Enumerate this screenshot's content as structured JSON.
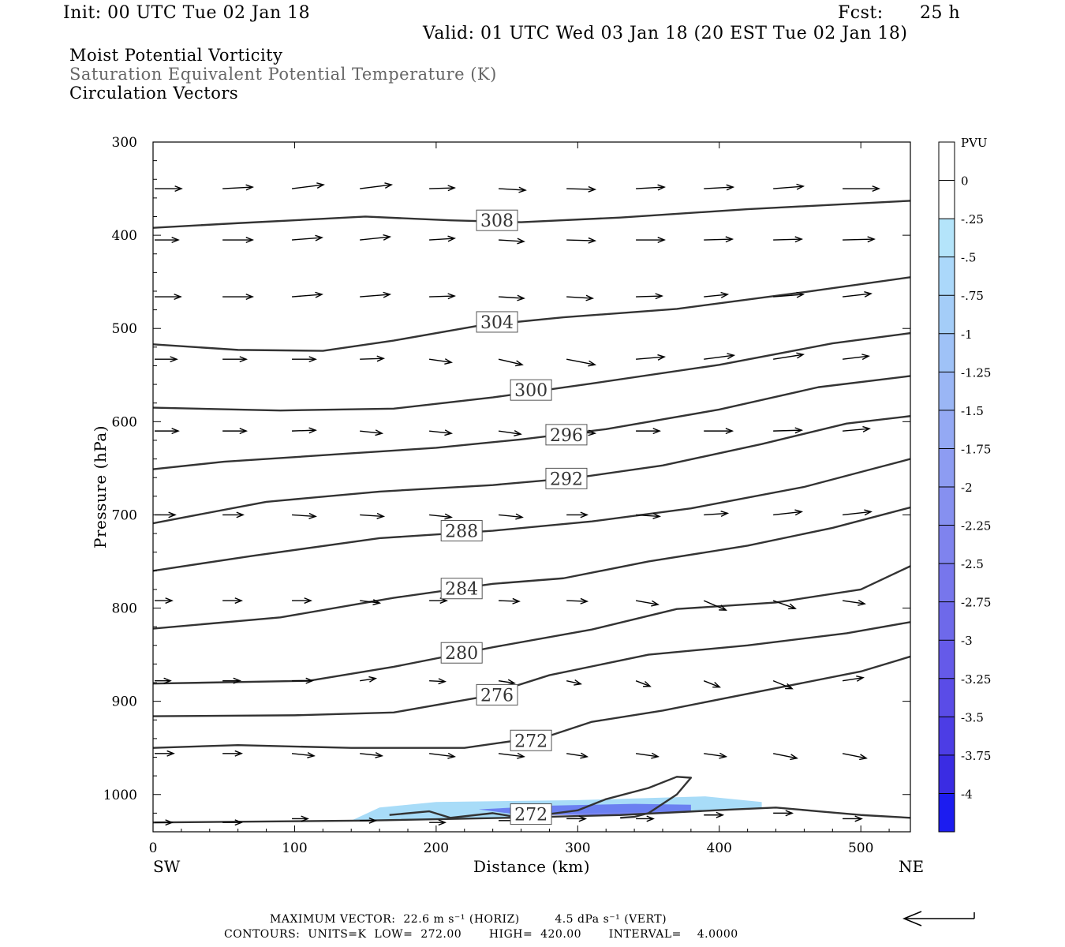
{
  "header": {
    "init": "Init: 00 UTC Tue 02 Jan 18",
    "fcst_label": "Fcst:",
    "fcst_value": "25 h",
    "valid": "Valid: 01 UTC Wed 03 Jan 18 (20 EST Tue 02 Jan 18)"
  },
  "fields": {
    "field1": "Moist Potential Vorticity",
    "field2": "Saturation Equivalent Potential Temperature (K)",
    "field3": "Circulation Vectors"
  },
  "footer": {
    "max_vector": "MAXIMUM VECTOR:  22.6 m s⁻¹ (HORIZ)         4.5 dPa s⁻¹ (VERT)",
    "contours": "CONTOURS:  UNITS=K  LOW=  272.00       HIGH=  420.00       INTERVAL=    4.0000"
  },
  "colors": {
    "contour": "#333333",
    "vector": "#000000",
    "pv_light": "#a8dcf8",
    "pv_dark": "#6070f0"
  },
  "chart_data": {
    "type": "cross-section",
    "xlabel": "Distance (km)",
    "ylabel": "Pressure (hPa)",
    "xlim": [
      0,
      535
    ],
    "ylim": [
      300,
      1040
    ],
    "x_ticks": [
      0,
      100,
      200,
      300,
      400,
      500
    ],
    "y_ticks": [
      300,
      400,
      500,
      600,
      700,
      800,
      900,
      1000
    ],
    "x_end_labels": {
      "left": "SW",
      "right": "NE"
    },
    "colorbar": {
      "unit": "PVU",
      "labels": [
        "0",
        "-.25",
        "-.5",
        "-.75",
        "-1",
        "-1.25",
        "-1.5",
        "-1.75",
        "-2",
        "-2.25",
        "-2.5",
        "-2.75",
        "-3",
        "-3.25",
        "-3.5",
        "-3.75",
        "-4"
      ],
      "colors": [
        "#ffffff",
        "#ffffff",
        "#b4e4fa",
        "#abd8fa",
        "#a4cdf8",
        "#9fc2f7",
        "#9ab6f5",
        "#94a9f4",
        "#8d9cf2",
        "#8690f0",
        "#7f83ee",
        "#7776ec",
        "#6e69ea",
        "#655ae9",
        "#5a4ce7",
        "#4c3de5",
        "#3a2ce3",
        "#1c1cf0"
      ]
    },
    "contours": [
      {
        "label": "308",
        "label_at": [
          243,
          384
        ],
        "points": [
          [
            0,
            392
          ],
          [
            60,
            387
          ],
          [
            150,
            380
          ],
          [
            210,
            384
          ],
          [
            260,
            386
          ],
          [
            330,
            381
          ],
          [
            420,
            372
          ],
          [
            535,
            363
          ]
        ]
      },
      {
        "label": "304",
        "label_at": [
          243,
          493
        ],
        "points": [
          [
            0,
            517
          ],
          [
            60,
            523
          ],
          [
            120,
            524
          ],
          [
            170,
            513
          ],
          [
            230,
            497
          ],
          [
            290,
            488
          ],
          [
            370,
            479
          ],
          [
            460,
            461
          ],
          [
            535,
            445
          ]
        ]
      },
      {
        "label": "300",
        "label_at": [
          267,
          566
        ],
        "points": [
          [
            0,
            585
          ],
          [
            90,
            588
          ],
          [
            170,
            586
          ],
          [
            240,
            574
          ],
          [
            310,
            559
          ],
          [
            400,
            539
          ],
          [
            480,
            516
          ],
          [
            535,
            505
          ]
        ]
      },
      {
        "label": "296",
        "label_at": [
          292,
          614
        ],
        "points": [
          [
            0,
            651
          ],
          [
            50,
            643
          ],
          [
            140,
            634
          ],
          [
            200,
            628
          ],
          [
            260,
            619
          ],
          [
            320,
            608
          ],
          [
            400,
            587
          ],
          [
            470,
            563
          ],
          [
            535,
            551
          ]
        ]
      },
      {
        "label": "292",
        "label_at": [
          292,
          661
        ],
        "points": [
          [
            0,
            709
          ],
          [
            80,
            686
          ],
          [
            160,
            675
          ],
          [
            240,
            668
          ],
          [
            300,
            660
          ],
          [
            360,
            647
          ],
          [
            430,
            624
          ],
          [
            490,
            602
          ],
          [
            535,
            594
          ]
        ]
      },
      {
        "label": "288",
        "label_at": [
          218,
          717
        ],
        "points": [
          [
            0,
            760
          ],
          [
            70,
            744
          ],
          [
            160,
            725
          ],
          [
            240,
            717
          ],
          [
            310,
            707
          ],
          [
            380,
            693
          ],
          [
            460,
            670
          ],
          [
            510,
            650
          ],
          [
            535,
            640
          ]
        ]
      },
      {
        "label": "284",
        "label_at": [
          218,
          779
        ],
        "points": [
          [
            0,
            822
          ],
          [
            90,
            810
          ],
          [
            170,
            789
          ],
          [
            240,
            774
          ],
          [
            290,
            768
          ],
          [
            350,
            750
          ],
          [
            420,
            733
          ],
          [
            480,
            714
          ],
          [
            535,
            692
          ]
        ]
      },
      {
        "label": "280",
        "label_at": [
          218,
          848
        ],
        "points": [
          [
            0,
            881
          ],
          [
            110,
            878
          ],
          [
            170,
            863
          ],
          [
            240,
            842
          ],
          [
            310,
            823
          ],
          [
            370,
            801
          ],
          [
            440,
            794
          ],
          [
            500,
            780
          ],
          [
            535,
            755
          ]
        ]
      },
      {
        "label": "276",
        "label_at": [
          243,
          893
        ],
        "points": [
          [
            0,
            916
          ],
          [
            100,
            915
          ],
          [
            170,
            912
          ],
          [
            230,
            896
          ],
          [
            280,
            872
          ],
          [
            350,
            850
          ],
          [
            420,
            840
          ],
          [
            490,
            827
          ],
          [
            535,
            815
          ]
        ]
      },
      {
        "label": "272",
        "label_at": [
          267,
          942
        ],
        "points": [
          [
            0,
            950
          ],
          [
            60,
            947
          ],
          [
            140,
            950
          ],
          [
            220,
            950
          ],
          [
            280,
            937
          ],
          [
            310,
            922
          ],
          [
            360,
            910
          ],
          [
            440,
            886
          ],
          [
            500,
            868
          ],
          [
            535,
            852
          ]
        ]
      },
      {
        "label": "272",
        "label_at": [
          267,
          1021
        ],
        "points": [
          [
            167,
            1022
          ],
          [
            195,
            1018
          ],
          [
            210,
            1025
          ],
          [
            240,
            1020
          ],
          [
            260,
            1025
          ],
          [
            300,
            1017
          ],
          [
            320,
            1005
          ],
          [
            350,
            993
          ],
          [
            370,
            981
          ],
          [
            380,
            982
          ],
          [
            370,
            1000
          ],
          [
            355,
            1015
          ],
          [
            350,
            1020
          ],
          [
            340,
            1024
          ],
          [
            330,
            1025
          ]
        ]
      },
      {
        "label": "",
        "label_at": null,
        "points": [
          [
            0,
            1030
          ],
          [
            150,
            1028
          ],
          [
            250,
            1025
          ],
          [
            330,
            1022
          ],
          [
            410,
            1016
          ],
          [
            440,
            1014
          ],
          [
            470,
            1018
          ],
          [
            500,
            1022
          ],
          [
            535,
            1025
          ]
        ]
      }
    ],
    "pv_shading": [
      {
        "level": "-0.25",
        "points": [
          [
            140,
            1028
          ],
          [
            160,
            1014
          ],
          [
            200,
            1008
          ],
          [
            300,
            1006
          ],
          [
            390,
            1002
          ],
          [
            430,
            1008
          ],
          [
            430,
            1014
          ],
          [
            370,
            1018
          ],
          [
            300,
            1020
          ],
          [
            240,
            1025
          ]
        ]
      },
      {
        "level": "-1.0",
        "points": [
          [
            230,
            1016
          ],
          [
            280,
            1012
          ],
          [
            340,
            1010
          ],
          [
            380,
            1011
          ],
          [
            380,
            1018
          ],
          [
            320,
            1022
          ],
          [
            260,
            1022
          ]
        ]
      }
    ],
    "vectors": [
      [
        0,
        350,
        34,
        0
      ],
      [
        48,
        350,
        38,
        -2
      ],
      [
        97,
        350,
        40,
        -5
      ],
      [
        145,
        350,
        40,
        -5
      ],
      [
        194,
        350,
        32,
        -1
      ],
      [
        243,
        350,
        34,
        2
      ],
      [
        291,
        350,
        36,
        1
      ],
      [
        340,
        350,
        36,
        -2
      ],
      [
        388,
        350,
        37,
        -2
      ],
      [
        437,
        350,
        38,
        -3
      ],
      [
        486,
        350,
        46,
        0
      ],
      [
        0,
        405,
        30,
        0
      ],
      [
        48,
        405,
        38,
        0
      ],
      [
        97,
        405,
        38,
        -3
      ],
      [
        145,
        405,
        38,
        -4
      ],
      [
        194,
        405,
        32,
        -2
      ],
      [
        243,
        405,
        32,
        2
      ],
      [
        291,
        405,
        36,
        1
      ],
      [
        340,
        405,
        36,
        0
      ],
      [
        388,
        405,
        36,
        -1
      ],
      [
        437,
        405,
        36,
        -1
      ],
      [
        486,
        405,
        40,
        -1
      ],
      [
        0,
        466,
        33,
        0
      ],
      [
        48,
        466,
        38,
        0
      ],
      [
        97,
        466,
        38,
        -3
      ],
      [
        145,
        466,
        38,
        -3
      ],
      [
        194,
        466,
        32,
        -1
      ],
      [
        243,
        466,
        32,
        2
      ],
      [
        291,
        466,
        33,
        2
      ],
      [
        340,
        466,
        33,
        -1
      ],
      [
        388,
        466,
        30,
        -3
      ],
      [
        437,
        466,
        38,
        -3
      ],
      [
        486,
        466,
        36,
        -4
      ],
      [
        0,
        533,
        28,
        0
      ],
      [
        48,
        533,
        30,
        0
      ],
      [
        97,
        533,
        30,
        0
      ],
      [
        145,
        533,
        30,
        -1
      ],
      [
        194,
        533,
        28,
        4
      ],
      [
        243,
        533,
        30,
        7
      ],
      [
        291,
        533,
        36,
        7
      ],
      [
        340,
        533,
        36,
        -3
      ],
      [
        388,
        533,
        38,
        -5
      ],
      [
        437,
        533,
        38,
        -6
      ],
      [
        486,
        533,
        33,
        -4
      ],
      [
        0,
        610,
        30,
        0
      ],
      [
        48,
        610,
        30,
        0
      ],
      [
        97,
        610,
        30,
        -1
      ],
      [
        145,
        610,
        28,
        3
      ],
      [
        194,
        610,
        28,
        3
      ],
      [
        243,
        610,
        28,
        4
      ],
      [
        291,
        610,
        36,
        3
      ],
      [
        340,
        610,
        30,
        0
      ],
      [
        388,
        610,
        36,
        0
      ],
      [
        437,
        610,
        36,
        -1
      ],
      [
        486,
        610,
        34,
        -3
      ],
      [
        0,
        700,
        26,
        0
      ],
      [
        48,
        700,
        26,
        0
      ],
      [
        97,
        700,
        30,
        2
      ],
      [
        145,
        700,
        30,
        2
      ],
      [
        194,
        700,
        28,
        3
      ],
      [
        243,
        700,
        30,
        3
      ],
      [
        291,
        700,
        26,
        0
      ],
      [
        340,
        700,
        30,
        2
      ],
      [
        388,
        700,
        30,
        -2
      ],
      [
        437,
        700,
        36,
        -4
      ],
      [
        486,
        700,
        36,
        -4
      ],
      [
        0,
        792,
        22,
        0
      ],
      [
        48,
        792,
        24,
        0
      ],
      [
        97,
        792,
        24,
        0
      ],
      [
        145,
        792,
        25,
        3
      ],
      [
        194,
        792,
        22,
        0
      ],
      [
        243,
        792,
        26,
        1
      ],
      [
        291,
        792,
        26,
        1
      ],
      [
        340,
        792,
        28,
        5
      ],
      [
        388,
        792,
        28,
        12
      ],
      [
        437,
        792,
        28,
        10
      ],
      [
        486,
        792,
        28,
        4
      ],
      [
        0,
        878,
        20,
        0
      ],
      [
        48,
        878,
        22,
        0
      ],
      [
        97,
        878,
        26,
        0
      ],
      [
        145,
        878,
        20,
        -3
      ],
      [
        194,
        878,
        20,
        1
      ],
      [
        243,
        878,
        20,
        3
      ],
      [
        291,
        878,
        18,
        4
      ],
      [
        340,
        878,
        18,
        7
      ],
      [
        388,
        878,
        20,
        8
      ],
      [
        437,
        878,
        24,
        10
      ],
      [
        486,
        878,
        26,
        -4
      ],
      [
        0,
        956,
        24,
        0
      ],
      [
        48,
        956,
        24,
        0
      ],
      [
        97,
        956,
        28,
        3
      ],
      [
        145,
        956,
        28,
        3
      ],
      [
        194,
        956,
        32,
        4
      ],
      [
        243,
        956,
        32,
        4
      ],
      [
        291,
        956,
        26,
        4
      ],
      [
        340,
        956,
        28,
        4
      ],
      [
        388,
        956,
        28,
        4
      ],
      [
        437,
        956,
        30,
        6
      ],
      [
        486,
        956,
        30,
        6
      ],
      [
        0,
        1030,
        22,
        0
      ],
      [
        48,
        1030,
        24,
        0
      ],
      [
        97,
        1026,
        20,
        0
      ],
      [
        145,
        1028,
        20,
        0
      ],
      [
        194,
        1030,
        20,
        0
      ],
      [
        243,
        1028,
        24,
        0
      ],
      [
        291,
        1026,
        24,
        0
      ],
      [
        340,
        1026,
        22,
        0
      ],
      [
        388,
        1022,
        24,
        0
      ],
      [
        437,
        1020,
        24,
        0
      ],
      [
        486,
        1026,
        24,
        0
      ]
    ]
  }
}
